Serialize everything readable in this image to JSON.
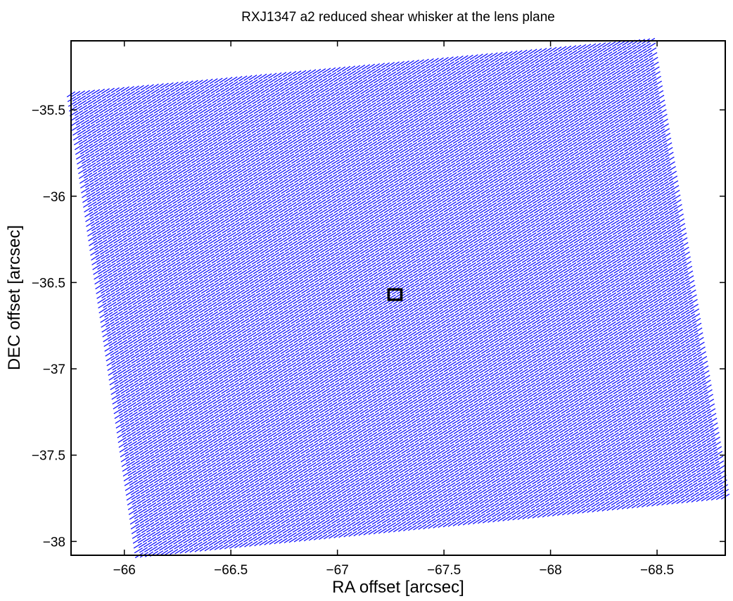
{
  "chart_data": {
    "type": "scatter",
    "title": "RXJ1347 a2 reduced shear whisker at the lens plane",
    "xlabel": "RA offset [arcsec]",
    "ylabel": "DEC offset [arcsec]",
    "xlim": [
      -65.75,
      -68.82
    ],
    "ylim": [
      -38.08,
      -35.1
    ],
    "x_reversed": true,
    "xticks": [
      -66,
      -66.5,
      -67,
      -67.5,
      -68,
      -68.5
    ],
    "xtick_labels": [
      "−66",
      "−66.5",
      "−67",
      "−67.5",
      "−68",
      "−68.5"
    ],
    "yticks": [
      -35.5,
      -36,
      -36.5,
      -37,
      -37.5,
      -38
    ],
    "ytick_labels": [
      "−35.5",
      "−36",
      "−36.5",
      "−37",
      "−37.5",
      "−38"
    ],
    "grid": false,
    "whisker_color": "#0000ff",
    "whisker_field": {
      "corners": [
        {
          "x": -65.75,
          "y": -35.41
        },
        {
          "x": -68.47,
          "y": -35.1
        },
        {
          "x": -68.82,
          "y": -37.74
        },
        {
          "x": -66.07,
          "y": -38.08
        }
      ],
      "whisker_length": 0.045,
      "whisker_angle_deg": 32
    },
    "marker": {
      "shape": "square",
      "x": -67.27,
      "y": -36.57,
      "half_size": 0.03,
      "color": "#000000"
    }
  }
}
